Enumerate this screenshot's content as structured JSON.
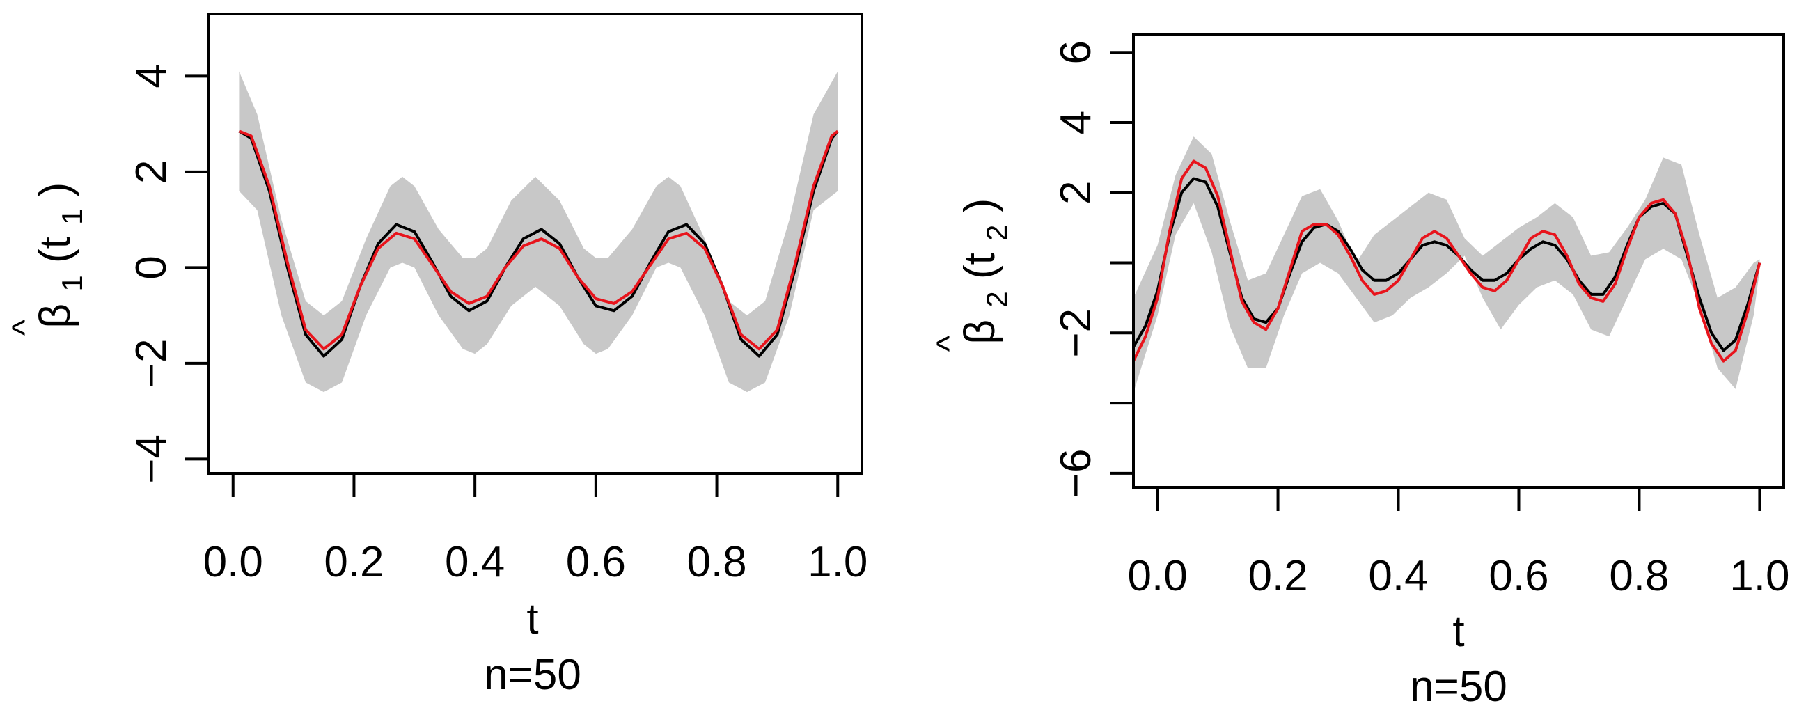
{
  "chart_data": [
    {
      "type": "line",
      "panel": "left",
      "ylabel": {
        "hat": "^",
        "symbol": "β",
        "sub": "1",
        "open": "(t",
        "arg_sub": "1",
        "close": ")"
      },
      "xlabel": "t",
      "caption": "n=50",
      "xlim": [
        -0.04,
        1.04
      ],
      "ylim": [
        -4.3,
        5.3
      ],
      "xticks": [
        0.0,
        0.2,
        0.4,
        0.6,
        0.8,
        1.0
      ],
      "xtick_labels": [
        "0.0",
        "0.2",
        "0.4",
        "0.6",
        "0.8",
        "1.0"
      ],
      "yticks": [
        -4,
        -2,
        0,
        2,
        4
      ],
      "ytick_labels": [
        "-4",
        "-2",
        "0",
        "2",
        "4"
      ],
      "band": {
        "name": "confidence band",
        "color": "#c8c8c8",
        "x": [
          0.01,
          0.04,
          0.08,
          0.12,
          0.15,
          0.18,
          0.22,
          0.26,
          0.28,
          0.3,
          0.34,
          0.38,
          0.4,
          0.42,
          0.46,
          0.5,
          0.54,
          0.58,
          0.6,
          0.62,
          0.66,
          0.7,
          0.72,
          0.74,
          0.78,
          0.82,
          0.85,
          0.88,
          0.92,
          0.96,
          1.0
        ],
        "upper": [
          4.1,
          3.2,
          1.0,
          -0.7,
          -1.0,
          -0.7,
          0.6,
          1.7,
          1.9,
          1.7,
          0.8,
          0.2,
          0.2,
          0.4,
          1.4,
          1.9,
          1.4,
          0.4,
          0.2,
          0.2,
          0.8,
          1.7,
          1.9,
          1.7,
          0.6,
          -0.7,
          -1.0,
          -0.7,
          1.0,
          3.2,
          4.1
        ],
        "lower": [
          1.6,
          1.2,
          -1.0,
          -2.4,
          -2.6,
          -2.4,
          -1.0,
          0.0,
          0.1,
          0.0,
          -1.0,
          -1.7,
          -1.8,
          -1.6,
          -0.8,
          -0.4,
          -0.8,
          -1.6,
          -1.8,
          -1.7,
          -1.0,
          0.0,
          0.1,
          0.0,
          -1.0,
          -2.4,
          -2.6,
          -2.4,
          -1.0,
          1.2,
          1.6
        ]
      },
      "series": [
        {
          "name": "estimate (black)",
          "color": "#000000",
          "x": [
            0.01,
            0.03,
            0.06,
            0.09,
            0.12,
            0.15,
            0.18,
            0.21,
            0.24,
            0.27,
            0.3,
            0.33,
            0.36,
            0.39,
            0.42,
            0.45,
            0.48,
            0.51,
            0.54,
            0.57,
            0.6,
            0.63,
            0.66,
            0.69,
            0.72,
            0.75,
            0.78,
            0.81,
            0.84,
            0.87,
            0.9,
            0.93,
            0.96,
            0.99,
            1.0
          ],
          "values": [
            2.85,
            2.7,
            1.6,
            0.0,
            -1.4,
            -1.85,
            -1.5,
            -0.4,
            0.5,
            0.9,
            0.75,
            0.1,
            -0.6,
            -0.9,
            -0.7,
            0.0,
            0.6,
            0.8,
            0.5,
            -0.2,
            -0.8,
            -0.9,
            -0.6,
            0.1,
            0.75,
            0.9,
            0.5,
            -0.4,
            -1.5,
            -1.85,
            -1.4,
            0.0,
            1.6,
            2.7,
            2.85
          ]
        },
        {
          "name": "true function (red)",
          "color": "#e8141c",
          "x": [
            0.01,
            0.03,
            0.06,
            0.09,
            0.12,
            0.15,
            0.18,
            0.21,
            0.24,
            0.27,
            0.3,
            0.33,
            0.36,
            0.39,
            0.42,
            0.45,
            0.48,
            0.51,
            0.54,
            0.57,
            0.6,
            0.63,
            0.66,
            0.69,
            0.72,
            0.75,
            0.78,
            0.81,
            0.84,
            0.87,
            0.9,
            0.93,
            0.96,
            0.99,
            1.0
          ],
          "values": [
            2.85,
            2.75,
            1.7,
            0.1,
            -1.3,
            -1.7,
            -1.4,
            -0.4,
            0.4,
            0.72,
            0.6,
            0.05,
            -0.5,
            -0.75,
            -0.6,
            0.0,
            0.45,
            0.6,
            0.4,
            -0.2,
            -0.65,
            -0.75,
            -0.5,
            0.05,
            0.6,
            0.72,
            0.4,
            -0.4,
            -1.4,
            -1.7,
            -1.3,
            0.1,
            1.7,
            2.75,
            2.85
          ]
        }
      ]
    },
    {
      "type": "line",
      "panel": "right",
      "ylabel": {
        "hat": "^",
        "symbol": "β",
        "sub": "2",
        "open": "(t",
        "arg_sub": "2",
        "close": ")"
      },
      "xlabel": "t",
      "caption": "n=50",
      "xlim": [
        -0.04,
        1.04
      ],
      "ylim": [
        -6.4,
        6.5
      ],
      "xticks": [
        0.0,
        0.2,
        0.4,
        0.6,
        0.8,
        1.0
      ],
      "xtick_labels": [
        "0.0",
        "0.2",
        "0.4",
        "0.6",
        "0.8",
        "1.0"
      ],
      "yticks": [
        -6,
        -4,
        -2,
        0,
        2,
        4,
        6
      ],
      "ytick_labels": [
        "-6",
        "",
        "-2",
        "",
        "2",
        "4",
        "6"
      ],
      "band": {
        "name": "confidence band",
        "color": "#c8c8c8",
        "x": [
          -0.04,
          0.0,
          0.03,
          0.06,
          0.09,
          0.12,
          0.15,
          0.18,
          0.21,
          0.24,
          0.27,
          0.3,
          0.33,
          0.36,
          0.39,
          0.42,
          0.45,
          0.48,
          0.51,
          0.54,
          0.57,
          0.6,
          0.63,
          0.66,
          0.69,
          0.72,
          0.75,
          0.78,
          0.81,
          0.84,
          0.87,
          0.9,
          0.93,
          0.96,
          0.99,
          1.0
        ],
        "upper": [
          -1.0,
          0.5,
          2.5,
          3.6,
          3.1,
          1.2,
          -0.5,
          -0.3,
          0.8,
          1.9,
          2.1,
          1.2,
          0.0,
          0.8,
          1.2,
          1.6,
          2.0,
          1.8,
          0.7,
          0.2,
          0.6,
          1.0,
          1.3,
          1.7,
          1.3,
          0.2,
          0.3,
          1.0,
          1.8,
          3.0,
          2.8,
          0.8,
          -1.0,
          -0.7,
          0.0,
          0.1
        ],
        "lower": [
          -3.7,
          -1.5,
          0.8,
          1.7,
          0.3,
          -1.8,
          -3.0,
          -3.0,
          -1.5,
          -0.3,
          0.0,
          -0.3,
          -1.0,
          -1.7,
          -1.5,
          -1.0,
          -0.7,
          -0.3,
          0.2,
          -1.0,
          -1.9,
          -1.2,
          -0.7,
          -0.5,
          -0.9,
          -1.9,
          -2.1,
          -1.0,
          0.1,
          0.4,
          0.1,
          -1.2,
          -3.0,
          -3.6,
          -1.5,
          -0.2
        ]
      },
      "series": [
        {
          "name": "estimate (black)",
          "color": "#000000",
          "x": [
            -0.04,
            -0.02,
            0.0,
            0.02,
            0.04,
            0.06,
            0.08,
            0.1,
            0.12,
            0.14,
            0.16,
            0.18,
            0.2,
            0.22,
            0.24,
            0.26,
            0.28,
            0.3,
            0.32,
            0.34,
            0.36,
            0.38,
            0.4,
            0.42,
            0.44,
            0.46,
            0.48,
            0.5,
            0.52,
            0.54,
            0.56,
            0.58,
            0.6,
            0.62,
            0.64,
            0.66,
            0.68,
            0.7,
            0.72,
            0.74,
            0.76,
            0.78,
            0.8,
            0.82,
            0.84,
            0.86,
            0.88,
            0.9,
            0.92,
            0.94,
            0.96,
            0.98,
            1.0
          ],
          "values": [
            -2.4,
            -1.8,
            -0.8,
            0.8,
            2.0,
            2.4,
            2.3,
            1.6,
            0.3,
            -1.0,
            -1.6,
            -1.7,
            -1.3,
            -0.3,
            0.6,
            1.0,
            1.1,
            0.9,
            0.4,
            -0.2,
            -0.5,
            -0.5,
            -0.3,
            0.1,
            0.5,
            0.6,
            0.5,
            0.2,
            -0.2,
            -0.5,
            -0.5,
            -0.3,
            0.1,
            0.4,
            0.6,
            0.5,
            0.1,
            -0.5,
            -0.9,
            -0.9,
            -0.4,
            0.5,
            1.3,
            1.6,
            1.7,
            1.4,
            0.2,
            -1.0,
            -2.0,
            -2.5,
            -2.2,
            -1.2,
            0.0
          ]
        },
        {
          "name": "true function (red)",
          "color": "#e8141c",
          "x": [
            -0.04,
            -0.02,
            0.0,
            0.02,
            0.04,
            0.06,
            0.08,
            0.1,
            0.12,
            0.14,
            0.16,
            0.18,
            0.2,
            0.22,
            0.24,
            0.26,
            0.28,
            0.3,
            0.32,
            0.34,
            0.36,
            0.38,
            0.4,
            0.42,
            0.44,
            0.46,
            0.48,
            0.5,
            0.52,
            0.54,
            0.56,
            0.58,
            0.6,
            0.62,
            0.64,
            0.66,
            0.68,
            0.7,
            0.72,
            0.74,
            0.76,
            0.78,
            0.8,
            0.82,
            0.84,
            0.86,
            0.88,
            0.9,
            0.92,
            0.94,
            0.96,
            0.98,
            1.0
          ],
          "values": [
            -2.8,
            -2.1,
            -1.0,
            0.9,
            2.4,
            2.9,
            2.7,
            1.9,
            0.4,
            -1.1,
            -1.7,
            -1.9,
            -1.3,
            -0.2,
            0.9,
            1.1,
            1.1,
            0.8,
            0.2,
            -0.5,
            -0.9,
            -0.8,
            -0.5,
            0.1,
            0.7,
            0.9,
            0.7,
            0.2,
            -0.3,
            -0.7,
            -0.8,
            -0.5,
            0.1,
            0.7,
            0.9,
            0.8,
            0.2,
            -0.6,
            -1.0,
            -1.1,
            -0.6,
            0.4,
            1.3,
            1.7,
            1.8,
            1.4,
            0.3,
            -1.3,
            -2.3,
            -2.8,
            -2.5,
            -1.4,
            0.0
          ]
        }
      ]
    }
  ]
}
